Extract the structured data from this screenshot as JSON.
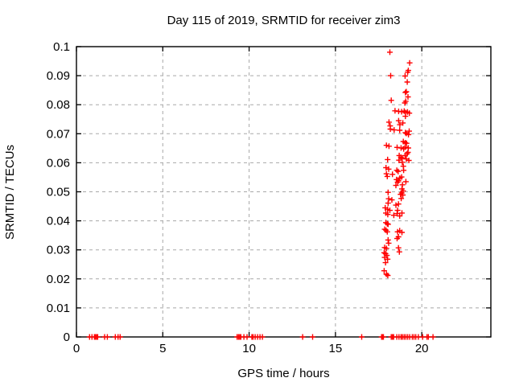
{
  "chart_data": {
    "type": "scatter",
    "title": "Day 115 of 2019, SRMTID for receiver zim3",
    "xlabel": "GPS time / hours",
    "ylabel": "SRMTID / TECUs",
    "xlim": [
      0,
      24
    ],
    "ylim": [
      0,
      0.1
    ],
    "x_ticks": [
      {
        "v": 0,
        "label": "0"
      },
      {
        "v": 5,
        "label": "5"
      },
      {
        "v": 10,
        "label": "10"
      },
      {
        "v": 15,
        "label": "15"
      },
      {
        "v": 20,
        "label": "20"
      }
    ],
    "y_ticks": [
      {
        "v": 0,
        "label": "0"
      },
      {
        "v": 0.01,
        "label": "0.01"
      },
      {
        "v": 0.02,
        "label": "0.02"
      },
      {
        "v": 0.03,
        "label": "0.03"
      },
      {
        "v": 0.04,
        "label": "0.04"
      },
      {
        "v": 0.05,
        "label": "0.05"
      },
      {
        "v": 0.06,
        "label": "0.06"
      },
      {
        "v": 0.07,
        "label": "0.07"
      },
      {
        "v": 0.08,
        "label": "0.08"
      },
      {
        "v": 0.09,
        "label": "0.09"
      },
      {
        "v": 0.1,
        "label": "0.1"
      }
    ],
    "grid": true,
    "legend": false,
    "marker": {
      "shape": "plus",
      "color": "#ff0000",
      "size": 7
    },
    "colors": {
      "axis": "#000000",
      "grid": "#a8a8a8",
      "background": "#ffffff"
    },
    "points": [
      [
        0.76,
        0
      ],
      [
        0.9,
        0
      ],
      [
        1.04,
        0
      ],
      [
        1.1,
        0
      ],
      [
        1.17,
        0
      ],
      [
        1.23,
        0
      ],
      [
        1.63,
        0
      ],
      [
        1.79,
        0
      ],
      [
        2.25,
        0
      ],
      [
        2.41,
        0
      ],
      [
        2.53,
        0
      ],
      [
        9.3,
        0
      ],
      [
        9.38,
        0
      ],
      [
        9.45,
        0
      ],
      [
        9.52,
        0
      ],
      [
        9.7,
        0
      ],
      [
        9.88,
        0
      ],
      [
        10.16,
        0
      ],
      [
        10.23,
        0
      ],
      [
        10.35,
        0
      ],
      [
        10.49,
        0
      ],
      [
        10.63,
        0
      ],
      [
        10.77,
        0
      ],
      [
        13.1,
        0
      ],
      [
        13.68,
        0
      ],
      [
        16.52,
        0
      ],
      [
        17.67,
        0
      ],
      [
        17.72,
        0
      ],
      [
        17.78,
        0
      ],
      [
        18.23,
        0
      ],
      [
        18.3,
        0
      ],
      [
        18.37,
        0
      ],
      [
        18.55,
        0
      ],
      [
        18.68,
        0
      ],
      [
        18.8,
        0
      ],
      [
        18.88,
        0
      ],
      [
        18.98,
        0
      ],
      [
        19.08,
        0
      ],
      [
        19.18,
        0
      ],
      [
        19.3,
        0
      ],
      [
        19.45,
        0
      ],
      [
        19.55,
        0
      ],
      [
        19.65,
        0
      ],
      [
        19.8,
        0
      ],
      [
        20.05,
        0
      ],
      [
        20.3,
        0
      ],
      [
        20.38,
        0
      ],
      [
        20.65,
        0
      ],
      [
        18.15,
        0.0981
      ],
      [
        19.3,
        0.0944
      ],
      [
        19.22,
        0.0918
      ],
      [
        19.18,
        0.0912
      ],
      [
        18.2,
        0.09
      ],
      [
        19.03,
        0.0899
      ],
      [
        19.16,
        0.0878
      ],
      [
        19.1,
        0.0845
      ],
      [
        19.05,
        0.0842
      ],
      [
        19.2,
        0.0827
      ],
      [
        18.23,
        0.0815
      ],
      [
        19.07,
        0.0812
      ],
      [
        19.02,
        0.0806
      ],
      [
        18.45,
        0.0779
      ],
      [
        18.66,
        0.0777
      ],
      [
        18.83,
        0.0776
      ],
      [
        18.98,
        0.0778
      ],
      [
        19.06,
        0.0773
      ],
      [
        19.17,
        0.0775
      ],
      [
        19.28,
        0.0771
      ],
      [
        19.05,
        0.076
      ],
      [
        18.66,
        0.0745
      ],
      [
        18.1,
        0.074
      ],
      [
        18.9,
        0.0737
      ],
      [
        18.73,
        0.0731
      ],
      [
        18.17,
        0.0727
      ],
      [
        18.18,
        0.0716
      ],
      [
        18.4,
        0.0713
      ],
      [
        18.72,
        0.0712
      ],
      [
        19.27,
        0.0709
      ],
      [
        19.05,
        0.0704
      ],
      [
        19.1,
        0.0701
      ],
      [
        19.23,
        0.0697
      ],
      [
        18.93,
        0.0673
      ],
      [
        19.04,
        0.0669
      ],
      [
        19.12,
        0.0667
      ],
      [
        17.95,
        0.066
      ],
      [
        18.1,
        0.0657
      ],
      [
        18.57,
        0.0653
      ],
      [
        18.8,
        0.0651
      ],
      [
        19.03,
        0.0654
      ],
      [
        19.22,
        0.0651
      ],
      [
        18.95,
        0.0648
      ],
      [
        19.2,
        0.0636
      ],
      [
        19.15,
        0.0631
      ],
      [
        18.69,
        0.0625
      ],
      [
        19.03,
        0.0625
      ],
      [
        18.79,
        0.0619
      ],
      [
        18.87,
        0.0615
      ],
      [
        19.1,
        0.0613
      ],
      [
        18.02,
        0.0611
      ],
      [
        18.68,
        0.0609
      ],
      [
        19.25,
        0.0608
      ],
      [
        18.87,
        0.0602
      ],
      [
        18.93,
        0.0588
      ],
      [
        17.93,
        0.0583
      ],
      [
        18.08,
        0.0578
      ],
      [
        18.55,
        0.0574
      ],
      [
        18.95,
        0.0574
      ],
      [
        18.63,
        0.057
      ],
      [
        17.95,
        0.0562
      ],
      [
        18.3,
        0.056
      ],
      [
        18.0,
        0.0553
      ],
      [
        18.83,
        0.0551
      ],
      [
        18.73,
        0.0547
      ],
      [
        18.54,
        0.0542
      ],
      [
        18.65,
        0.0538
      ],
      [
        19.08,
        0.0535
      ],
      [
        18.6,
        0.0533
      ],
      [
        18.88,
        0.0524
      ],
      [
        18.5,
        0.0522
      ],
      [
        18.85,
        0.051
      ],
      [
        18.92,
        0.0503
      ],
      [
        18.05,
        0.0498
      ],
      [
        18.84,
        0.0496
      ],
      [
        18.77,
        0.0491
      ],
      [
        18.9,
        0.0489
      ],
      [
        18.08,
        0.0476
      ],
      [
        18.81,
        0.0477
      ],
      [
        18.27,
        0.0472
      ],
      [
        18.05,
        0.0461
      ],
      [
        18.65,
        0.0458
      ],
      [
        18.5,
        0.0454
      ],
      [
        17.88,
        0.0445
      ],
      [
        18.02,
        0.044
      ],
      [
        18.15,
        0.0436
      ],
      [
        18.6,
        0.0436
      ],
      [
        17.92,
        0.0427
      ],
      [
        18.03,
        0.0422
      ],
      [
        18.38,
        0.0419
      ],
      [
        18.57,
        0.0425
      ],
      [
        18.72,
        0.0417
      ],
      [
        18.85,
        0.0427
      ],
      [
        17.92,
        0.0394
      ],
      [
        18.0,
        0.039
      ],
      [
        18.05,
        0.0388
      ],
      [
        17.85,
        0.0371
      ],
      [
        17.93,
        0.0368
      ],
      [
        18.0,
        0.0362
      ],
      [
        18.6,
        0.0362
      ],
      [
        18.72,
        0.0366
      ],
      [
        18.85,
        0.036
      ],
      [
        18.65,
        0.0345
      ],
      [
        18.57,
        0.0339
      ],
      [
        18.05,
        0.0334
      ],
      [
        18.08,
        0.0323
      ],
      [
        17.85,
        0.0308
      ],
      [
        17.95,
        0.0305
      ],
      [
        18.65,
        0.0307
      ],
      [
        18.7,
        0.0293
      ],
      [
        17.82,
        0.029
      ],
      [
        17.9,
        0.0287
      ],
      [
        17.98,
        0.0281
      ],
      [
        17.85,
        0.0274
      ],
      [
        18.02,
        0.0268
      ],
      [
        17.9,
        0.0256
      ],
      [
        17.82,
        0.0228
      ],
      [
        17.95,
        0.0216
      ],
      [
        18.03,
        0.0212
      ]
    ]
  }
}
